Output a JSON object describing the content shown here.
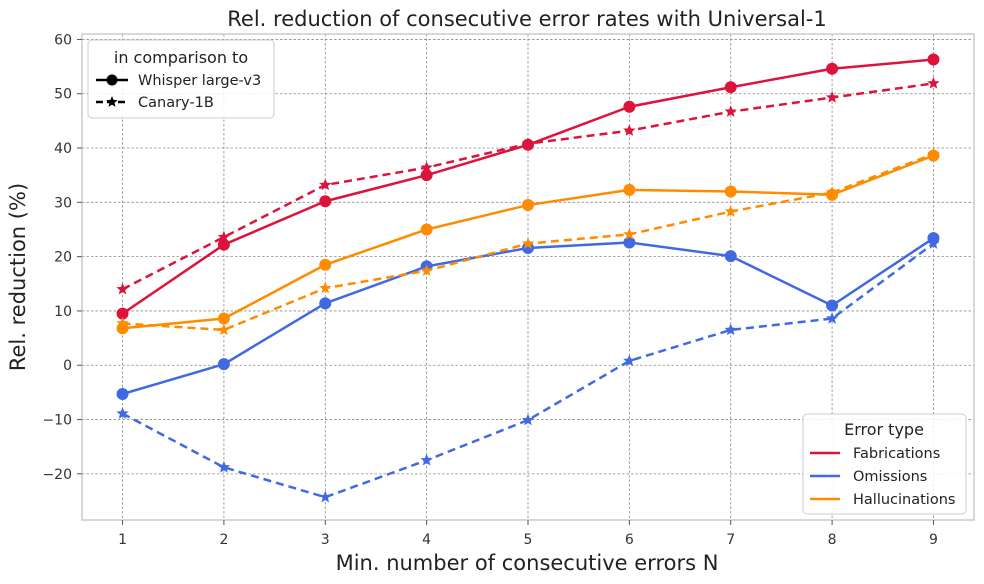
{
  "chart_data": {
    "type": "line",
    "title": "Rel. reduction of consecutive error rates with Universal-1",
    "xlabel": "Min. number of consecutive errors N",
    "ylabel": "Rel. reduction (%)",
    "x": [
      1,
      2,
      3,
      4,
      5,
      6,
      7,
      8,
      9
    ],
    "xticks": [
      "1",
      "2",
      "3",
      "4",
      "5",
      "6",
      "7",
      "8",
      "9"
    ],
    "yticks": [
      "−20",
      "−10",
      "0",
      "10",
      "20",
      "30",
      "40",
      "50",
      "60"
    ],
    "ylim": [
      -28.5,
      61
    ],
    "xlim": [
      0.6,
      9.4
    ],
    "grid": true,
    "series": [
      {
        "name": "Fabrications",
        "comparison": "Whisper large-v3",
        "color": "#DC143C",
        "style": "solid",
        "marker": "circle",
        "values": [
          9.5,
          22.2,
          30.2,
          35.0,
          40.6,
          47.6,
          51.2,
          54.6,
          56.3
        ]
      },
      {
        "name": "Fabrications",
        "comparison": "Canary-1B",
        "color": "#DC143C",
        "style": "dashed",
        "marker": "star",
        "values": [
          14.0,
          23.6,
          33.2,
          36.4,
          40.8,
          43.2,
          46.7,
          49.3,
          51.9
        ]
      },
      {
        "name": "Omissions",
        "comparison": "Whisper large-v3",
        "color": "#4169E1",
        "style": "solid",
        "marker": "circle",
        "values": [
          -5.3,
          0.2,
          11.4,
          18.2,
          21.6,
          22.6,
          20.1,
          11.0,
          23.4
        ]
      },
      {
        "name": "Omissions",
        "comparison": "Canary-1B",
        "color": "#4169E1",
        "style": "dashed",
        "marker": "star",
        "values": [
          -8.9,
          -18.8,
          -24.3,
          -17.5,
          -10.1,
          0.8,
          6.5,
          8.6,
          22.4
        ]
      },
      {
        "name": "Hallucinations",
        "comparison": "Whisper large-v3",
        "color": "#FF8C00",
        "style": "solid",
        "marker": "circle",
        "values": [
          6.8,
          8.6,
          18.5,
          25.0,
          29.5,
          32.3,
          32.0,
          31.4,
          38.6
        ]
      },
      {
        "name": "Hallucinations",
        "comparison": "Canary-1B",
        "color": "#FF8C00",
        "style": "dashed",
        "marker": "star",
        "values": [
          7.7,
          6.5,
          14.2,
          17.4,
          22.4,
          24.1,
          28.3,
          31.8,
          38.9
        ]
      }
    ],
    "legend_comparison": {
      "title": "in comparison to",
      "placement": "top-left",
      "entries": [
        {
          "label": "Whisper large-v3",
          "style": "solid",
          "marker": "circle"
        },
        {
          "label": "Canary-1B",
          "style": "dashed",
          "marker": "star"
        }
      ]
    },
    "legend_error_type": {
      "title": "Error type",
      "placement": "bottom-right",
      "entries": [
        {
          "label": "Fabrications",
          "color": "#DC143C"
        },
        {
          "label": "Omissions",
          "color": "#4169E1"
        },
        {
          "label": "Hallucinations",
          "color": "#FF8C00"
        }
      ]
    }
  }
}
